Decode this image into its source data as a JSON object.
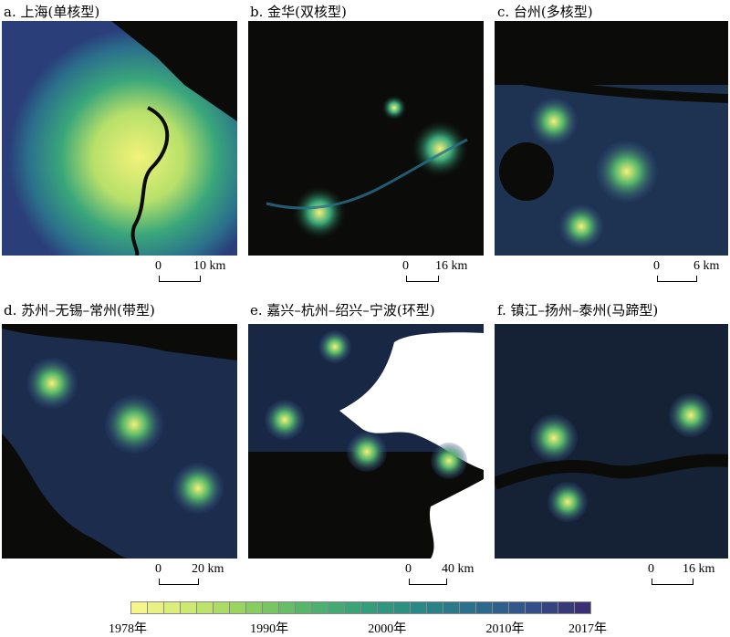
{
  "panels": [
    {
      "id": "a",
      "title": "a. 上海(单核型)",
      "scale_zero": "0",
      "scale_label": "10 km"
    },
    {
      "id": "b",
      "title": "b. 金华(双核型)",
      "scale_zero": "0",
      "scale_label": "16 km"
    },
    {
      "id": "c",
      "title": "c. 台州(多核型)",
      "scale_zero": "0",
      "scale_label": "6 km"
    },
    {
      "id": "d",
      "title": "d. 苏州–无锡–常州(带型)",
      "scale_zero": "0",
      "scale_label": "20 km"
    },
    {
      "id": "e",
      "title": "e. 嘉兴–杭州–绍兴–宁波(环型)",
      "scale_zero": "0",
      "scale_label": "40 km"
    },
    {
      "id": "f",
      "title": "f. 镇江–扬州–泰州(马蹄型)",
      "scale_zero": "0",
      "scale_label": "16 km"
    }
  ],
  "legend": {
    "ticks": [
      {
        "label": "1978年",
        "year": 1978
      },
      {
        "label": "1990年",
        "year": 1990
      },
      {
        "label": "2000年",
        "year": 2000
      },
      {
        "label": "2010年",
        "year": 2010
      },
      {
        "label": "2017年",
        "year": 2017
      }
    ],
    "start_year": 1978,
    "end_year": 2017,
    "cells": 28,
    "color_ramp": [
      "#f5f58a",
      "#c9e86f",
      "#8ccf5e",
      "#55b56a",
      "#36a07a",
      "#2a8a86",
      "#2b6f8c",
      "#33528a",
      "#392f72"
    ]
  },
  "colors": {
    "background": "#0b0c0a",
    "old": "#f2f27a",
    "mid": "#3aa77a",
    "new": "#2a3f7a"
  }
}
